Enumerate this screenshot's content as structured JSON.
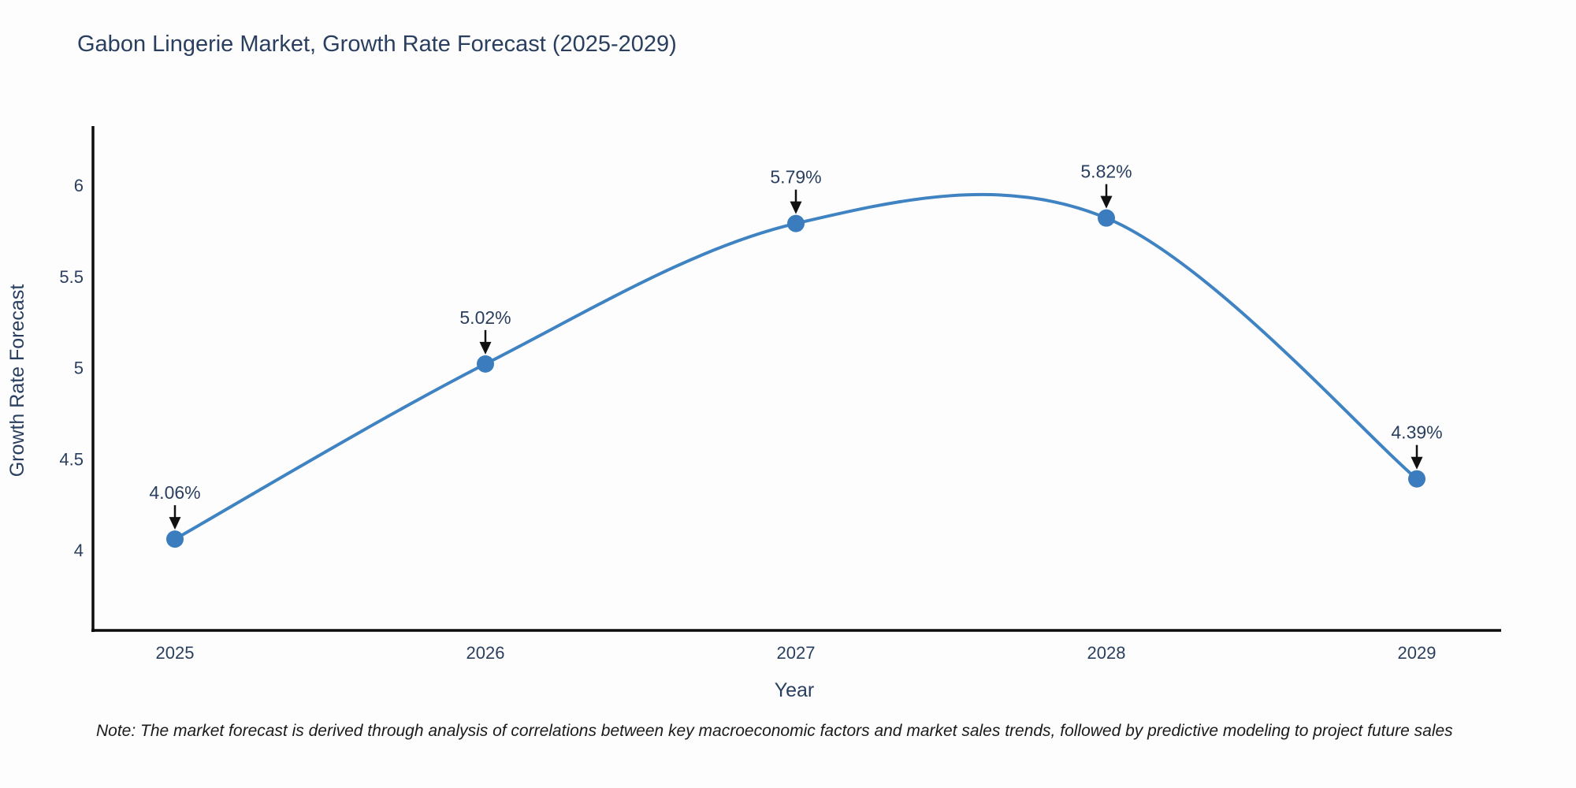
{
  "note": "Note: The market forecast is derived through analysis of correlations between key macroeconomic factors and market sales trends, followed by predictive modeling to project future sales",
  "chart_data": {
    "type": "line",
    "line_shape": "spline",
    "title": "Gabon Lingerie Market, Growth Rate Forecast (2025-2029)",
    "xlabel": "Year",
    "ylabel": "Growth Rate Forecast",
    "x": [
      2025,
      2026,
      2027,
      2028,
      2029
    ],
    "values": [
      4.06,
      5.02,
      5.79,
      5.82,
      4.39
    ],
    "point_labels": [
      "4.06%",
      "5.02%",
      "5.79%",
      "5.82%",
      "4.39%"
    ],
    "xtick_labels": [
      "2025",
      "2026",
      "2027",
      "2028",
      "2029"
    ],
    "yticks": [
      4,
      4.5,
      5,
      5.5,
      6
    ],
    "ytick_labels": [
      "4",
      "4.5",
      "5",
      "5.5",
      "6"
    ],
    "ylim": [
      3.56,
      6.32
    ],
    "xlim": [
      2024.74,
      2029.27
    ],
    "grid": false,
    "legend": "none",
    "colors": {
      "line": "#3f83c2",
      "marker": "#3a7cbd",
      "axis": "#0d0d0d",
      "text": "#2a3f5f",
      "annotation_text": "#2a3f5f",
      "annotation_arrow": "#111111"
    }
  }
}
